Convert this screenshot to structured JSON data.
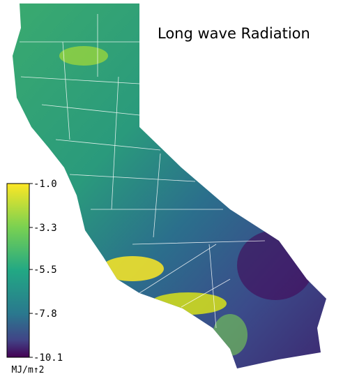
{
  "title": "Long wave Radiation",
  "colorbar": {
    "lim": [
      -10.1,
      -1
    ],
    "ticks": [
      {
        "value": -1,
        "label": "-1.0"
      },
      -3.3,
      -5.5,
      -7.8,
      -10.1
    ],
    "unit": "MJ/m↑2"
  }
}
